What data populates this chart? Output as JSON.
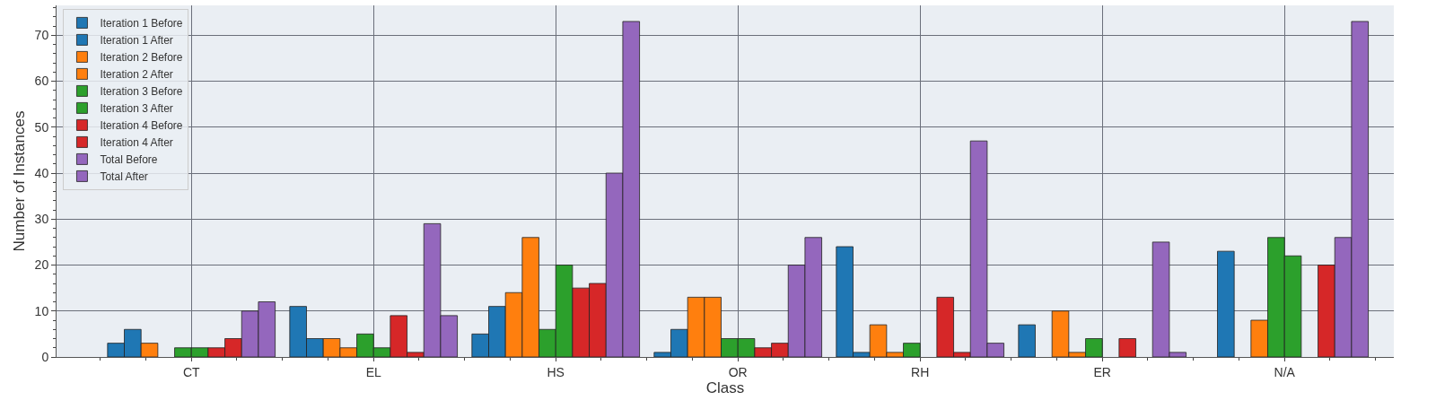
{
  "chart_data": {
    "type": "bar",
    "xlabel": "Class",
    "ylabel": "Number of Instances",
    "categories": [
      "CT",
      "EL",
      "HS",
      "OR",
      "RH",
      "ER",
      "N/A"
    ],
    "series": [
      {
        "name": "Iteration 1 Before",
        "color": "#1f77b4",
        "values": [
          3,
          11,
          5,
          1,
          24,
          7,
          null
        ]
      },
      {
        "name": "Iteration 1 After",
        "color": "#1f77b4",
        "values": [
          6,
          4,
          11,
          6,
          1,
          null,
          23
        ]
      },
      {
        "name": "Iteration 2 Before",
        "color": "#ff7f0e",
        "values": [
          3,
          4,
          14,
          13,
          7,
          10,
          null
        ]
      },
      {
        "name": "Iteration 2 After",
        "color": "#ff7f0e",
        "values": [
          null,
          2,
          26,
          13,
          1,
          1,
          8
        ]
      },
      {
        "name": "Iteration 3 Before",
        "color": "#2ca02c",
        "values": [
          2,
          5,
          6,
          4,
          3,
          4,
          26
        ]
      },
      {
        "name": "Iteration 3 After",
        "color": "#2ca02c",
        "values": [
          2,
          2,
          20,
          4,
          null,
          null,
          22
        ]
      },
      {
        "name": "Iteration 4 Before",
        "color": "#d62728",
        "values": [
          2,
          9,
          15,
          2,
          13,
          4,
          null
        ]
      },
      {
        "name": "Iteration 4 After",
        "color": "#d62728",
        "values": [
          4,
          1,
          16,
          3,
          1,
          null,
          20
        ]
      },
      {
        "name": "Total Before",
        "color": "#9467bd",
        "values": [
          10,
          29,
          40,
          20,
          47,
          25,
          26
        ]
      },
      {
        "name": "Total After",
        "color": "#9467bd",
        "values": [
          12,
          9,
          73,
          26,
          3,
          1,
          73
        ]
      }
    ],
    "ylim": [
      0,
      76.5
    ],
    "yticks": [
      0,
      10,
      20,
      30,
      40,
      50,
      60,
      70
    ],
    "grid": true,
    "legend": "top left"
  }
}
